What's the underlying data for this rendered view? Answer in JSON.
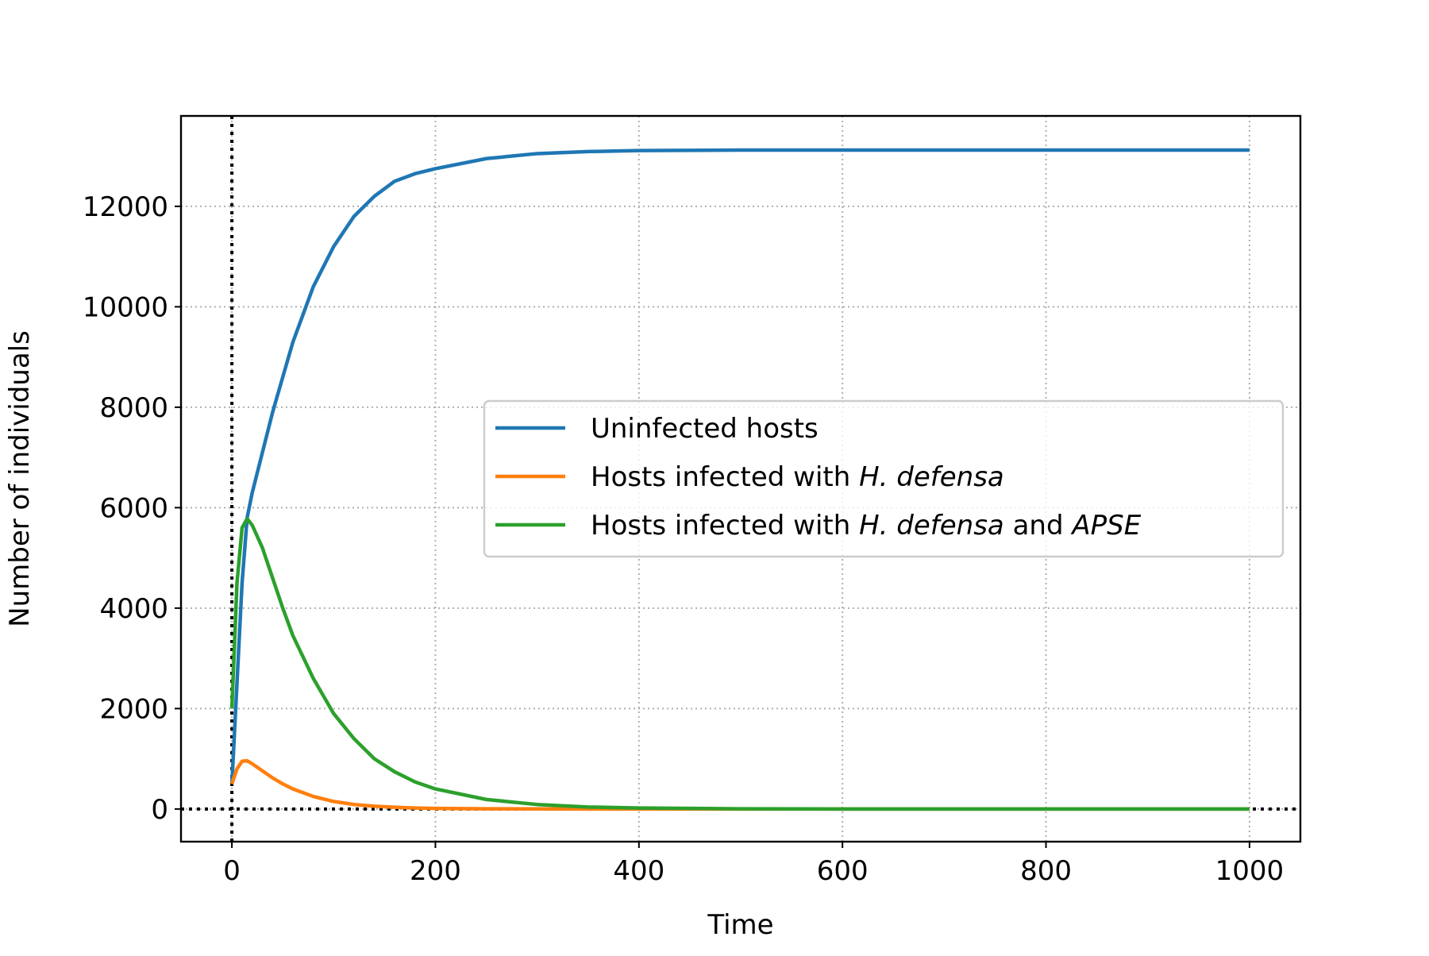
{
  "chart_data": {
    "type": "line",
    "title": "",
    "xlabel": "Time",
    "ylabel": "Number of individuals",
    "xlim": [
      -50,
      1050
    ],
    "ylim": [
      -650,
      13800
    ],
    "xticks": [
      0,
      200,
      400,
      600,
      800,
      1000
    ],
    "yticks": [
      0,
      2000,
      4000,
      6000,
      8000,
      10000,
      12000
    ],
    "xtick_labels": [
      "0",
      "200",
      "400",
      "600",
      "800",
      "1000"
    ],
    "ytick_labels": [
      "0",
      "2000",
      "4000",
      "6000",
      "8000",
      "10000",
      "12000"
    ],
    "grid": true,
    "reference_lines": {
      "x": 0,
      "y": 0
    },
    "legend_position": "center-right",
    "x": [
      0,
      5,
      10,
      15,
      20,
      30,
      40,
      50,
      60,
      80,
      100,
      120,
      140,
      160,
      180,
      200,
      250,
      300,
      350,
      400,
      500,
      600,
      800,
      1000
    ],
    "series": [
      {
        "name": "Uninfected hosts",
        "name_parts": [
          "Uninfected hosts"
        ],
        "color": "#1f77b4",
        "values": [
          500,
          2500,
          4500,
          5800,
          6300,
          7100,
          7900,
          8600,
          9300,
          10400,
          11200,
          11800,
          12200,
          12500,
          12650,
          12750,
          12950,
          13050,
          13090,
          13110,
          13120,
          13120,
          13120,
          13120
        ]
      },
      {
        "name": "Hosts infected with H. defensa",
        "name_parts": [
          "Hosts infected with ",
          "H. defensa"
        ],
        "color": "#ff7f0e",
        "values": [
          500,
          800,
          950,
          960,
          900,
          760,
          620,
          500,
          400,
          250,
          150,
          90,
          55,
          35,
          20,
          12,
          5,
          2,
          1,
          0,
          0,
          0,
          0,
          0
        ]
      },
      {
        "name": "Hosts infected with H. defensa and APSE",
        "name_parts": [
          "Hosts infected with ",
          "H. defensa",
          " and ",
          "APSE"
        ],
        "color": "#2ca02c",
        "values": [
          2000,
          4500,
          5600,
          5780,
          5650,
          5200,
          4600,
          4000,
          3450,
          2600,
          1900,
          1400,
          1000,
          740,
          540,
          400,
          190,
          90,
          40,
          20,
          5,
          0,
          0,
          0
        ]
      }
    ]
  }
}
